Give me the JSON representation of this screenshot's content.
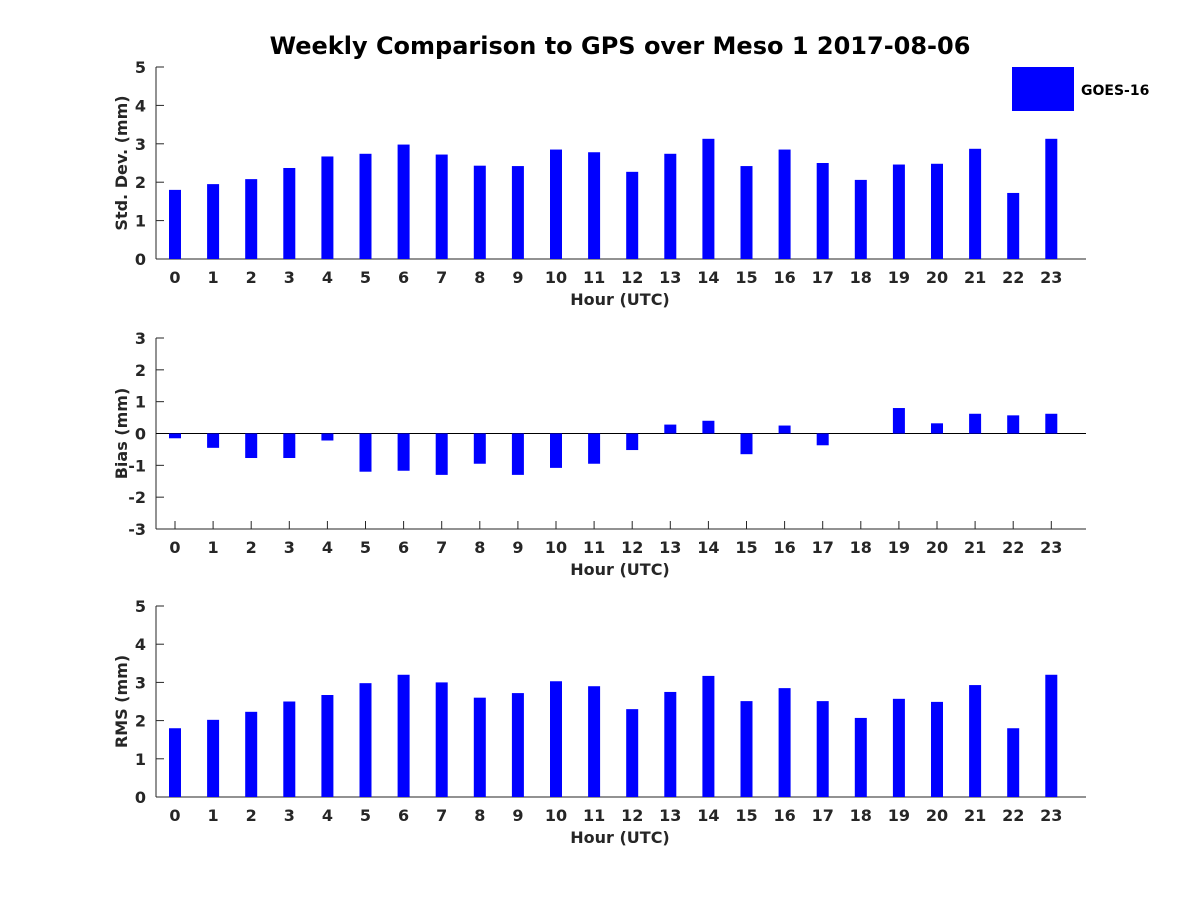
{
  "title": "Weekly Comparison to GPS over Meso 1 2017-08-06",
  "legend": {
    "label": "GOES-16",
    "color": "#0000ff"
  },
  "chart_data": [
    {
      "type": "bar",
      "title": "",
      "xlabel": "Hour (UTC)",
      "ylabel": "Std. Dev. (mm)",
      "categories": [
        "0",
        "1",
        "2",
        "3",
        "4",
        "5",
        "6",
        "7",
        "8",
        "9",
        "10",
        "11",
        "12",
        "13",
        "14",
        "15",
        "16",
        "17",
        "18",
        "19",
        "20",
        "21",
        "22",
        "23"
      ],
      "series": [
        {
          "name": "GOES-16",
          "values": [
            1.8,
            1.95,
            2.08,
            2.37,
            2.67,
            2.74,
            2.98,
            2.72,
            2.43,
            2.42,
            2.85,
            2.78,
            2.27,
            2.74,
            3.13,
            2.42,
            2.85,
            2.5,
            2.06,
            2.46,
            2.48,
            2.87,
            1.72,
            3.13
          ]
        }
      ],
      "ylim": [
        0,
        5
      ],
      "yticks": [
        0,
        1,
        2,
        3,
        4,
        5
      ],
      "grid": false
    },
    {
      "type": "bar",
      "title": "",
      "xlabel": "Hour (UTC)",
      "ylabel": "Bias (mm)",
      "categories": [
        "0",
        "1",
        "2",
        "3",
        "4",
        "5",
        "6",
        "7",
        "8",
        "9",
        "10",
        "11",
        "12",
        "13",
        "14",
        "15",
        "16",
        "17",
        "18",
        "19",
        "20",
        "21",
        "22",
        "23"
      ],
      "series": [
        {
          "name": "GOES-16",
          "values": [
            -0.15,
            -0.45,
            -0.77,
            -0.77,
            -0.22,
            -1.2,
            -1.17,
            -1.3,
            -0.95,
            -1.3,
            -1.08,
            -0.95,
            -0.52,
            0.28,
            0.4,
            -0.65,
            0.25,
            -0.37,
            0.0,
            0.8,
            0.32,
            0.62,
            0.57,
            0.62
          ]
        }
      ],
      "ylim": [
        -3,
        3
      ],
      "yticks": [
        -3,
        -2,
        -1,
        0,
        1,
        2,
        3
      ],
      "grid": false
    },
    {
      "type": "bar",
      "title": "",
      "xlabel": "Hour (UTC)",
      "ylabel": "RMS (mm)",
      "categories": [
        "0",
        "1",
        "2",
        "3",
        "4",
        "5",
        "6",
        "7",
        "8",
        "9",
        "10",
        "11",
        "12",
        "13",
        "14",
        "15",
        "16",
        "17",
        "18",
        "19",
        "20",
        "21",
        "22",
        "23"
      ],
      "series": [
        {
          "name": "GOES-16",
          "values": [
            1.8,
            2.02,
            2.23,
            2.5,
            2.67,
            2.98,
            3.2,
            3.0,
            2.6,
            2.72,
            3.03,
            2.9,
            2.3,
            2.75,
            3.17,
            2.51,
            2.85,
            2.51,
            2.07,
            2.57,
            2.49,
            2.93,
            1.8,
            3.2
          ]
        }
      ],
      "ylim": [
        0,
        5
      ],
      "yticks": [
        0,
        1,
        2,
        3,
        4,
        5
      ],
      "grid": false
    }
  ]
}
